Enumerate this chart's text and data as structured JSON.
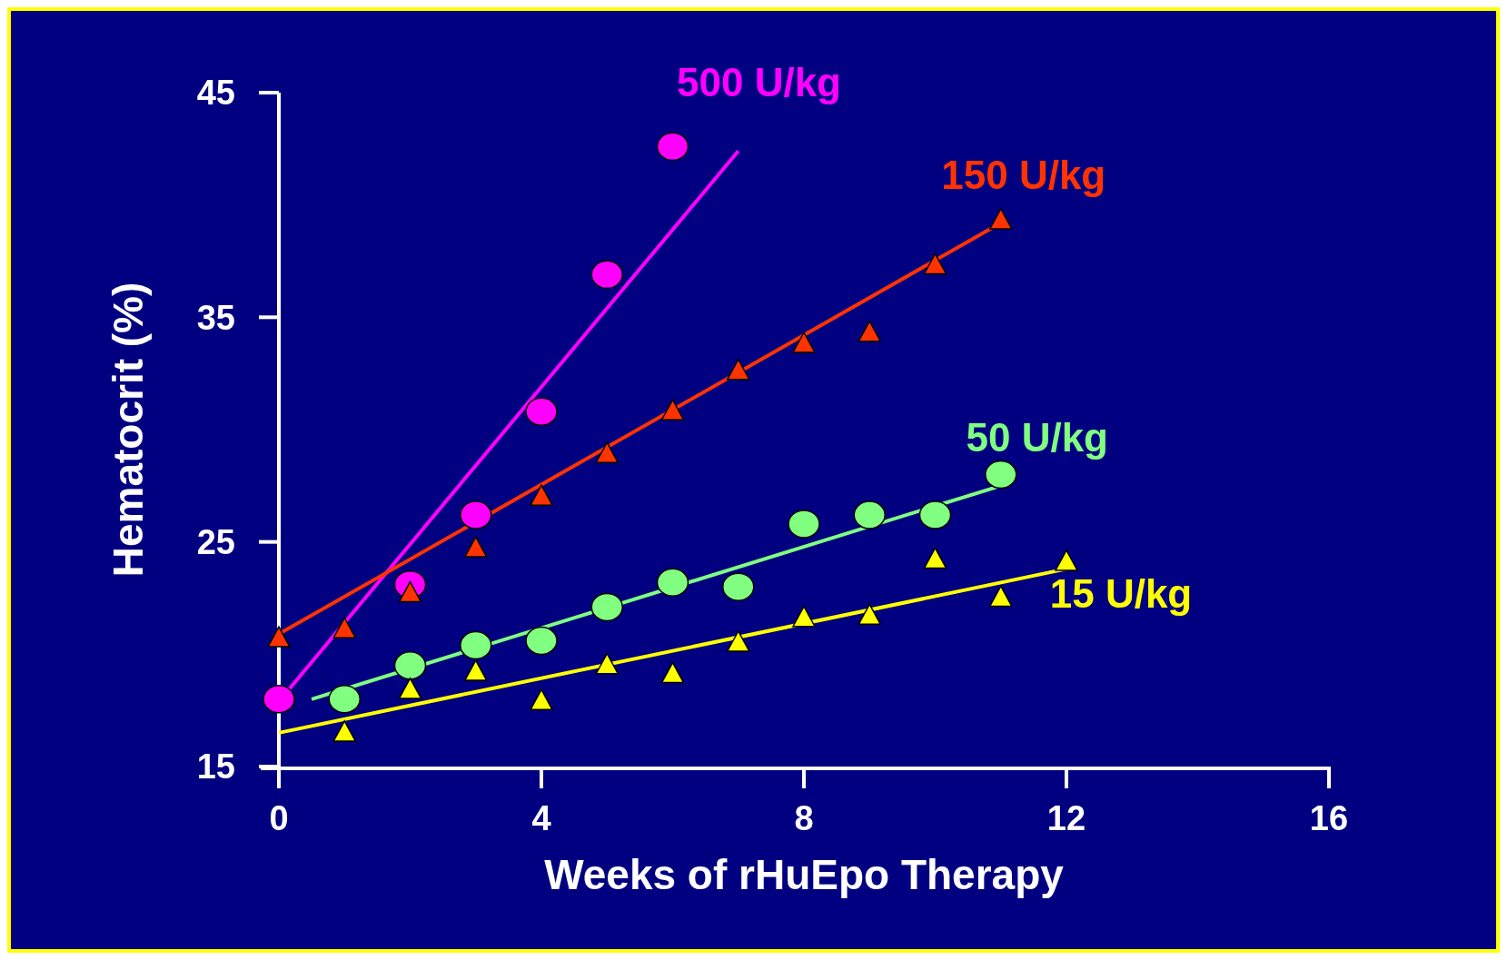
{
  "chart_data": {
    "type": "scatter",
    "xlabel": "Weeks of rHuEpo Therapy",
    "ylabel": "Hematocrit (%)",
    "xlim": [
      0,
      16
    ],
    "xticks": [
      0,
      4,
      8,
      12,
      16
    ],
    "ylim": [
      15,
      45
    ],
    "yticks": [
      15,
      25,
      35,
      45
    ],
    "series": [
      {
        "name": "500 U/kg",
        "color": "#ff00ff",
        "marker": "circle",
        "x": [
          0,
          2,
          3,
          4,
          5,
          6
        ],
        "values": [
          18.0,
          23.1,
          26.2,
          30.8,
          36.9,
          42.6
        ]
      },
      {
        "type": "line",
        "color": "#ff00ff",
        "x": [
          0,
          7
        ],
        "values": [
          17.9,
          42.4
        ]
      },
      {
        "name": "150 U/kg",
        "color": "#ff3300",
        "marker": "triangle",
        "x": [
          0,
          1,
          2,
          3,
          4,
          5,
          6,
          7,
          8,
          9,
          10,
          11
        ],
        "values": [
          20.7,
          21.1,
          22.7,
          24.7,
          27.0,
          28.9,
          30.8,
          32.6,
          33.8,
          34.3,
          37.3,
          39.3
        ]
      },
      {
        "type": "line",
        "color": "#ff3300",
        "x": [
          0,
          11
        ],
        "values": [
          20.9,
          39.2
        ]
      },
      {
        "name": "50 U/kg",
        "color": "#80ff80",
        "marker": "circle",
        "x": [
          1,
          2,
          3,
          4,
          5,
          6,
          7,
          8,
          9,
          10,
          11
        ],
        "values": [
          18.0,
          19.5,
          20.4,
          20.6,
          22.1,
          23.2,
          23.0,
          25.8,
          26.2,
          26.2,
          28.0
        ]
      },
      {
        "type": "line",
        "color": "#80ff80",
        "x": [
          0.5,
          11
        ],
        "values": [
          18.0,
          27.5
        ]
      },
      {
        "name": "15 U/kg",
        "color": "#ffff00",
        "marker": "triangle",
        "x": [
          1,
          2,
          3,
          4,
          5,
          6,
          7,
          8,
          9,
          10,
          11,
          12
        ],
        "values": [
          16.5,
          18.4,
          19.2,
          17.9,
          19.5,
          19.1,
          20.5,
          21.6,
          21.7,
          24.2,
          22.5,
          24.1
        ]
      },
      {
        "type": "line",
        "color": "#ffff00",
        "x": [
          0,
          12
        ],
        "values": [
          16.5,
          23.8
        ]
      }
    ]
  }
}
